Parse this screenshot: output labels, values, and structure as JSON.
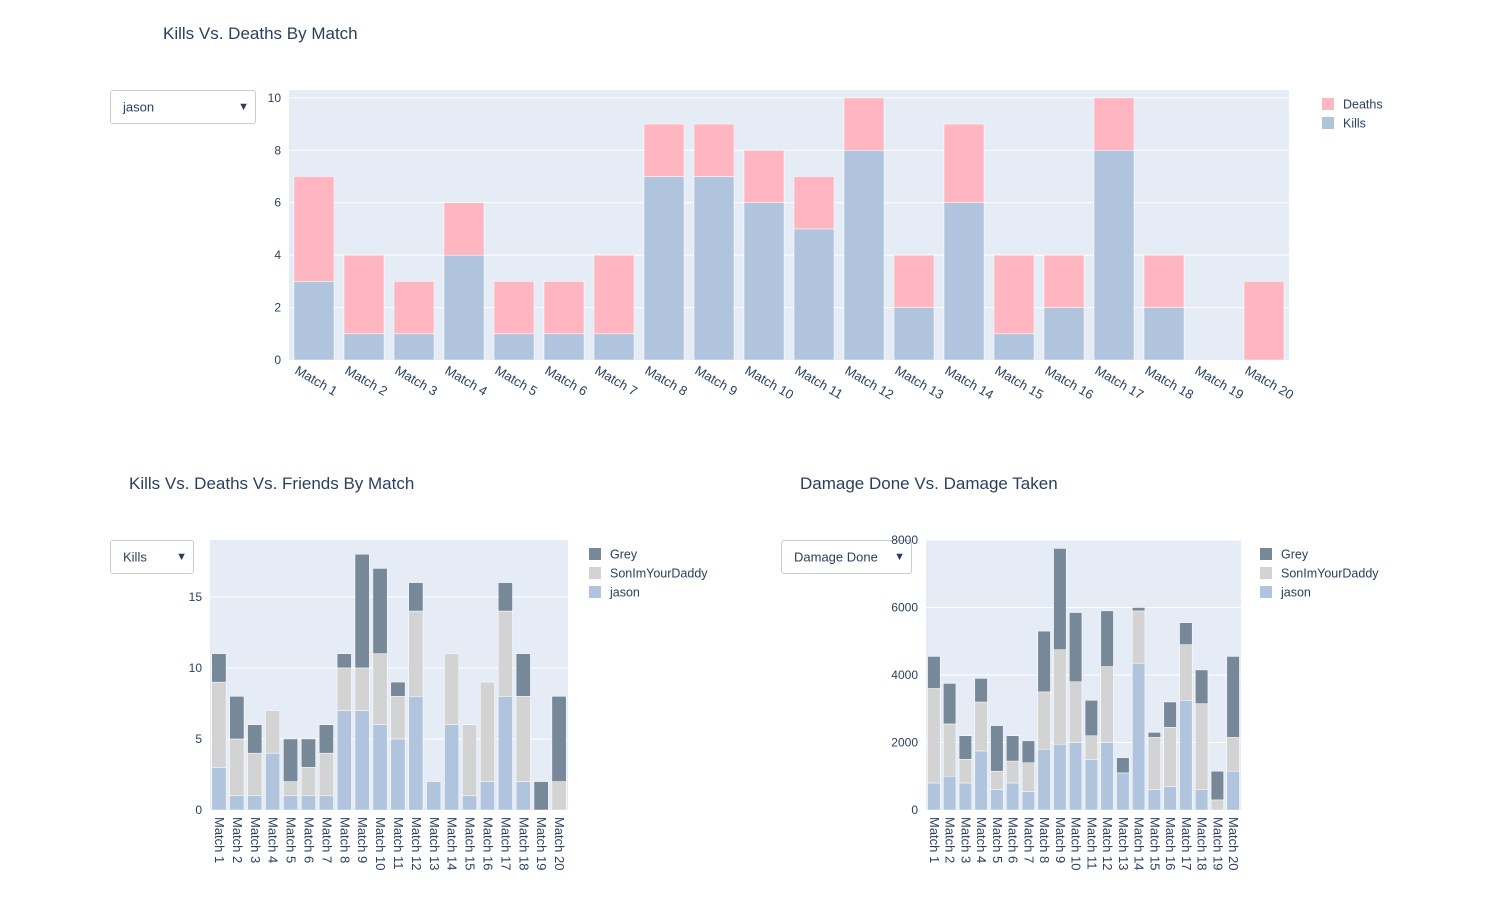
{
  "top": {
    "title": "Kills Vs. Deaths By Match",
    "dropdown_value": "jason"
  },
  "bottom_left": {
    "title": "Kills Vs. Deaths Vs. Friends By Match",
    "dropdown_value": "Kills"
  },
  "bottom_right": {
    "title": "Damage Done Vs. Damage Taken",
    "dropdown_value": "Damage Done"
  },
  "chart_data": [
    {
      "type": "bar",
      "barmode": "stack",
      "title": "Kills Vs. Deaths By Match",
      "categories": [
        "Match 1",
        "Match 2",
        "Match 3",
        "Match 4",
        "Match 5",
        "Match 6",
        "Match 7",
        "Match 8",
        "Match 9",
        "Match 10",
        "Match 11",
        "Match 12",
        "Match 13",
        "Match 14",
        "Match 15",
        "Match 16",
        "Match 17",
        "Match 18",
        "Match 19",
        "Match 20"
      ],
      "series": [
        {
          "name": "Kills",
          "color": "#b0c4de",
          "values": [
            3,
            1,
            1,
            4,
            1,
            1,
            1,
            7,
            7,
            6,
            5,
            8,
            2,
            6,
            1,
            2,
            8,
            2,
            0,
            0
          ]
        },
        {
          "name": "Deaths",
          "color": "#ffb6c1",
          "values": [
            4,
            3,
            2,
            2,
            2,
            2,
            3,
            2,
            2,
            2,
            2,
            2,
            2,
            3,
            3,
            2,
            2,
            2,
            0,
            3
          ]
        }
      ],
      "ylim": [
        0,
        10.3
      ],
      "yticks": [
        0,
        2,
        4,
        6,
        8,
        10
      ],
      "legend": [
        "Deaths",
        "Kills"
      ],
      "legend_position": "top-right"
    },
    {
      "type": "bar",
      "barmode": "stack",
      "title": "Kills Vs. Deaths Vs. Friends By Match",
      "categories": [
        "Match 1",
        "Match 2",
        "Match 3",
        "Match 4",
        "Match 5",
        "Match 6",
        "Match 7",
        "Match 8",
        "Match 9",
        "Match 10",
        "Match 11",
        "Match 12",
        "Match 13",
        "Match 14",
        "Match 15",
        "Match 16",
        "Match 17",
        "Match 18",
        "Match 19",
        "Match 20"
      ],
      "series": [
        {
          "name": "jason",
          "color": "#b0c4de",
          "values": [
            3,
            1,
            1,
            4,
            1,
            1,
            1,
            7,
            7,
            6,
            5,
            8,
            2,
            6,
            1,
            2,
            8,
            2,
            0,
            0
          ]
        },
        {
          "name": "SonImYourDaddy",
          "color": "#d3d3d3",
          "values": [
            6,
            4,
            3,
            3,
            1,
            2,
            3,
            3,
            3,
            5,
            3,
            6,
            0,
            5,
            5,
            7,
            6,
            6,
            0,
            2
          ]
        },
        {
          "name": "Grey",
          "color": "#778899",
          "values": [
            2,
            3,
            2,
            0,
            3,
            2,
            2,
            1,
            8,
            6,
            1,
            2,
            0,
            0,
            0,
            0,
            2,
            3,
            2,
            6
          ]
        }
      ],
      "ylim": [
        0,
        19
      ],
      "yticks": [
        0,
        5,
        10,
        15
      ],
      "legend": [
        "Grey",
        "SonImYourDaddy",
        "jason"
      ],
      "legend_position": "top-right"
    },
    {
      "type": "bar",
      "barmode": "stack",
      "title": "Damage Done Vs. Damage Taken",
      "categories": [
        "Match 1",
        "Match 2",
        "Match 3",
        "Match 4",
        "Match 5",
        "Match 6",
        "Match 7",
        "Match 8",
        "Match 9",
        "Match 10",
        "Match 11",
        "Match 12",
        "Match 13",
        "Match 14",
        "Match 15",
        "Match 16",
        "Match 17",
        "Match 18",
        "Match 19",
        "Match 20"
      ],
      "series": [
        {
          "name": "jason",
          "color": "#b0c4de",
          "values": [
            800,
            1000,
            800,
            1750,
            600,
            800,
            550,
            1800,
            1950,
            2000,
            1500,
            2000,
            1100,
            4350,
            600,
            700,
            3250,
            600,
            0,
            1150
          ]
        },
        {
          "name": "SonImYourDaddy",
          "color": "#d3d3d3",
          "values": [
            2800,
            1550,
            700,
            1450,
            550,
            650,
            850,
            1700,
            2800,
            1800,
            700,
            2250,
            0,
            1550,
            1550,
            1750,
            1650,
            2550,
            300,
            1000
          ]
        },
        {
          "name": "Grey",
          "color": "#778899",
          "values": [
            950,
            1200,
            700,
            700,
            1350,
            750,
            650,
            1800,
            3000,
            2050,
            1050,
            1650,
            450,
            100,
            150,
            750,
            650,
            1000,
            850,
            2400
          ]
        }
      ],
      "ylim": [
        0,
        8000
      ],
      "yticks": [
        0,
        2000,
        4000,
        6000,
        8000
      ],
      "legend": [
        "Grey",
        "SonImYourDaddy",
        "jason"
      ],
      "legend_position": "top-right"
    }
  ]
}
